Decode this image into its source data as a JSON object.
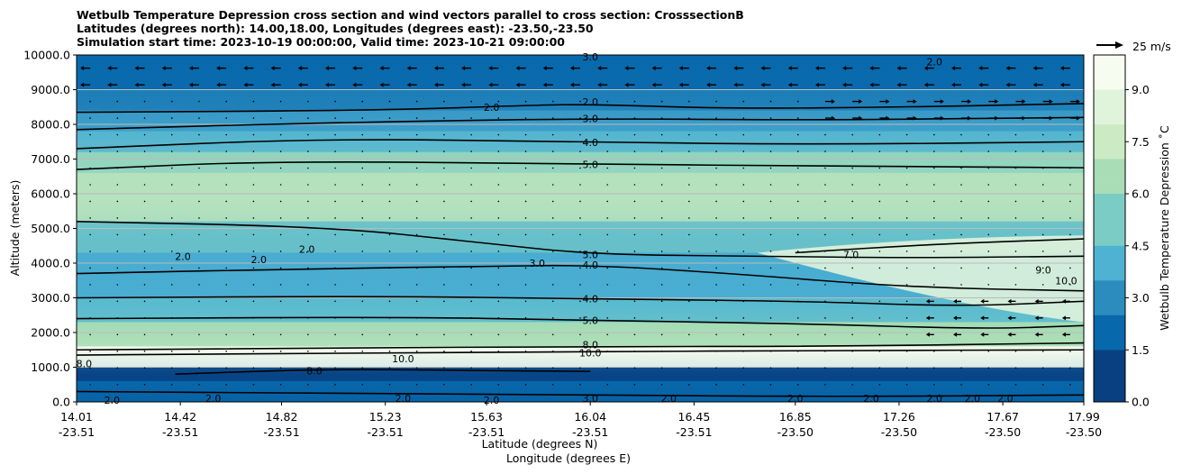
{
  "chart_data": {
    "type": "contour",
    "title": [
      "Wetbulb Temperature Depression cross section and wind vectors parallel to cross section: CrosssectionB",
      "Latitudes (degrees north): 14.00,18.00, Longitudes (degrees east): -23.50,-23.50",
      "Simulation start time: 2023-10-19 00:00:00, Valid time: 2023-10-21 09:00:00"
    ],
    "xlabel_lat": "Latitude (degrees N)",
    "xlabel_lon": "Longitude (degrees E)",
    "ylabel": "Altitude (meters)",
    "ylim": [
      0,
      10000
    ],
    "xlim": [
      14.01,
      17.99
    ],
    "x_ticks": [
      {
        "lat": "14.01",
        "lon": "-23.51"
      },
      {
        "lat": "14.42",
        "lon": "-23.51"
      },
      {
        "lat": "14.82",
        "lon": "-23.51"
      },
      {
        "lat": "15.23",
        "lon": "-23.51"
      },
      {
        "lat": "15.63",
        "lon": "-23.51"
      },
      {
        "lat": "16.04",
        "lon": "-23.51"
      },
      {
        "lat": "16.45",
        "lon": "-23.51"
      },
      {
        "lat": "16.85",
        "lon": "-23.50"
      },
      {
        "lat": "17.26",
        "lon": "-23.50"
      },
      {
        "lat": "17.67",
        "lon": "-23.50"
      },
      {
        "lat": "17.99",
        "lon": "-23.50"
      }
    ],
    "y_ticks": [
      "0.0",
      "1000.0",
      "2000.0",
      "3000.0",
      "4000.0",
      "5000.0",
      "6000.0",
      "7000.0",
      "8000.0",
      "9000.0",
      "10000.0"
    ],
    "y_tick_values": [
      0,
      1000,
      2000,
      3000,
      4000,
      5000,
      6000,
      7000,
      8000,
      9000,
      10000
    ],
    "colorbar": {
      "label": "Wetbulb Temperature Depression ˚C",
      "range": [
        0,
        10
      ],
      "ticks": [
        "0.0",
        "1.5",
        "3.0",
        "4.5",
        "6.0",
        "7.5",
        "9.0"
      ],
      "tick_values": [
        0,
        1.5,
        3,
        4.5,
        6,
        7.5,
        9
      ],
      "colormap": [
        "#084081",
        "#0868ac",
        "#2b8cbe",
        "#4eb3d3",
        "#7bccc4",
        "#a8ddb5",
        "#ccebc5",
        "#e0f3db",
        "#f7fcf0"
      ]
    },
    "quiver_key": "25 m/s",
    "contours": [
      {
        "level": 2,
        "label": "2.0",
        "points": [
          [
            14.01,
            8350
          ],
          [
            15.2,
            8400
          ],
          [
            15.8,
            8550
          ],
          [
            16.04,
            8580
          ],
          [
            16.6,
            8450
          ],
          [
            17.3,
            8500
          ],
          [
            17.99,
            8600
          ]
        ]
      },
      {
        "level": 3,
        "label": "3.0",
        "points": [
          [
            14.01,
            7850
          ],
          [
            15.0,
            8050
          ],
          [
            16.04,
            8170
          ],
          [
            16.9,
            8120
          ],
          [
            17.99,
            8200
          ]
        ]
      },
      {
        "level": 4,
        "label": "4.0",
        "points": [
          [
            14.01,
            7300
          ],
          [
            15.0,
            7600
          ],
          [
            16.04,
            7480
          ],
          [
            17.0,
            7420
          ],
          [
            17.99,
            7500
          ]
        ]
      },
      {
        "level": 5,
        "label": "5.0",
        "points": [
          [
            14.01,
            6700
          ],
          [
            14.8,
            6950
          ],
          [
            16.04,
            6850
          ],
          [
            17.0,
            6800
          ],
          [
            17.99,
            6750
          ]
        ]
      },
      {
        "level": 5,
        "label": "5.0",
        "points": [
          [
            14.01,
            5200
          ],
          [
            15.0,
            5050
          ],
          [
            15.6,
            4600
          ],
          [
            16.04,
            4250
          ],
          [
            16.7,
            4200
          ],
          [
            17.3,
            4150
          ],
          [
            17.99,
            4200
          ]
        ]
      },
      {
        "level": 4,
        "label": "4.0",
        "points": [
          [
            14.01,
            3700
          ],
          [
            15.0,
            3850
          ],
          [
            15.6,
            3900
          ],
          [
            16.04,
            3950
          ],
          [
            16.6,
            3700
          ],
          [
            17.3,
            3300
          ],
          [
            17.99,
            3200
          ]
        ]
      },
      {
        "level": 4,
        "label": "4.0",
        "points": [
          [
            14.01,
            3000
          ],
          [
            15.2,
            3050
          ],
          [
            16.04,
            2970
          ],
          [
            16.9,
            2900
          ],
          [
            17.5,
            2750
          ],
          [
            17.99,
            2900
          ]
        ]
      },
      {
        "level": 5,
        "label": "5.0",
        "points": [
          [
            14.01,
            2400
          ],
          [
            15.3,
            2450
          ],
          [
            16.04,
            2350
          ],
          [
            16.9,
            2250
          ],
          [
            17.6,
            2100
          ],
          [
            17.99,
            2200
          ]
        ]
      },
      {
        "level": 7,
        "label": "7.0",
        "points": [
          [
            16.85,
            4300
          ],
          [
            17.4,
            4550
          ],
          [
            17.99,
            4700
          ]
        ]
      },
      {
        "level": 8,
        "label": "8.0",
        "points": [
          [
            14.01,
            1500
          ],
          [
            15.0,
            1550
          ],
          [
            16.04,
            1600
          ],
          [
            17.0,
            1600
          ],
          [
            17.99,
            1700
          ]
        ]
      },
      {
        "level": 10,
        "label": "10.0",
        "points": [
          [
            14.01,
            1350
          ],
          [
            15.0,
            1400
          ],
          [
            16.04,
            1450
          ],
          [
            17.0,
            1480
          ],
          [
            17.99,
            1500
          ]
        ]
      },
      {
        "level": 8,
        "label": "8.0",
        "points": [
          [
            14.4,
            800
          ],
          [
            15.0,
            950
          ],
          [
            15.6,
            900
          ],
          [
            16.04,
            880
          ]
        ]
      },
      {
        "level": 2,
        "label": "2.0",
        "points": [
          [
            14.01,
            300
          ],
          [
            15.0,
            250
          ],
          [
            16.04,
            200
          ],
          [
            17.0,
            150
          ],
          [
            17.99,
            200
          ]
        ]
      }
    ],
    "contour_labels": [
      {
        "text": "2.0",
        "x": 15.65,
        "y": 8500
      },
      {
        "text": "2.0",
        "x": 16.04,
        "y": 8650
      },
      {
        "text": "3.0",
        "x": 16.04,
        "y": 8170
      },
      {
        "text": "4.0",
        "x": 16.04,
        "y": 7480
      },
      {
        "text": "5.0",
        "x": 16.04,
        "y": 6850
      },
      {
        "text": "2.0",
        "x": 14.43,
        "y": 4200
      },
      {
        "text": "2.0",
        "x": 14.73,
        "y": 4100
      },
      {
        "text": "2.0",
        "x": 14.92,
        "y": 4400
      },
      {
        "text": "3.0",
        "x": 15.83,
        "y": 4000
      },
      {
        "text": "5.0",
        "x": 16.04,
        "y": 4250
      },
      {
        "text": "4.0",
        "x": 16.04,
        "y": 3950
      },
      {
        "text": "7.0",
        "x": 17.07,
        "y": 4250
      },
      {
        "text": "9.0",
        "x": 17.83,
        "y": 3800
      },
      {
        "text": "10.0",
        "x": 17.92,
        "y": 3500
      },
      {
        "text": "4.0",
        "x": 16.04,
        "y": 2970
      },
      {
        "text": "5.0",
        "x": 16.04,
        "y": 2350
      },
      {
        "text": "8.0",
        "x": 16.04,
        "y": 1650
      },
      {
        "text": "10.0",
        "x": 16.04,
        "y": 1420
      },
      {
        "text": "8.0",
        "x": 14.95,
        "y": 900
      },
      {
        "text": "8.0",
        "x": 14.04,
        "y": 1100
      },
      {
        "text": "10.0",
        "x": 15.3,
        "y": 1250
      },
      {
        "text": "2.0",
        "x": 14.15,
        "y": 50
      },
      {
        "text": "2.0",
        "x": 14.55,
        "y": 100
      },
      {
        "text": "2.0",
        "x": 15.3,
        "y": 100
      },
      {
        "text": "2.0",
        "x": 15.65,
        "y": 50
      },
      {
        "text": "3.0",
        "x": 16.04,
        "y": 100
      },
      {
        "text": "2.0",
        "x": 16.35,
        "y": 100
      },
      {
        "text": "2.0",
        "x": 16.85,
        "y": 100
      },
      {
        "text": "2.0",
        "x": 17.15,
        "y": 100
      },
      {
        "text": "2.0",
        "x": 17.4,
        "y": 100
      },
      {
        "text": "2.0",
        "x": 17.55,
        "y": 100
      },
      {
        "text": "2.0",
        "x": 17.68,
        "y": 100
      },
      {
        "text": "3.0",
        "x": 16.04,
        "y": 9950
      },
      {
        "text": "2.0",
        "x": 17.4,
        "y": 9800
      }
    ]
  }
}
